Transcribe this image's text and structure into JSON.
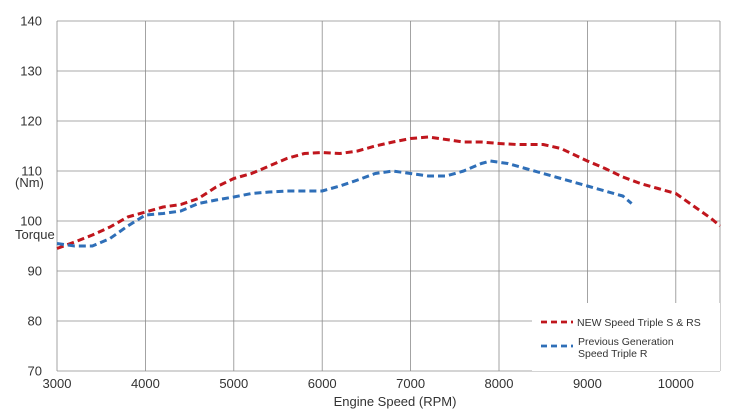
{
  "chart_data": {
    "type": "line",
    "xlabel": "Engine Speed (RPM)",
    "ylabel_unit": "(Nm)",
    "ylabel": "Torque",
    "xlim": [
      3000,
      10500
    ],
    "ylim": [
      70,
      140
    ],
    "xticks": [
      3000,
      4000,
      5000,
      6000,
      7000,
      8000,
      9000,
      10000
    ],
    "yticks": [
      70,
      80,
      90,
      100,
      110,
      120,
      130,
      140
    ],
    "grid": true,
    "legend_position": "bottom-right",
    "series": [
      {
        "name": "NEW Speed Triple S & RS",
        "color": "#c0161d",
        "dash": "dashed",
        "points": [
          [
            3000,
            94.5
          ],
          [
            3200,
            95.8
          ],
          [
            3400,
            97.2
          ],
          [
            3600,
            98.8
          ],
          [
            3800,
            100.8
          ],
          [
            4000,
            101.8
          ],
          [
            4200,
            102.8
          ],
          [
            4400,
            103.3
          ],
          [
            4600,
            104.5
          ],
          [
            4800,
            106.8
          ],
          [
            5000,
            108.5
          ],
          [
            5200,
            109.5
          ],
          [
            5400,
            111.0
          ],
          [
            5600,
            112.5
          ],
          [
            5800,
            113.5
          ],
          [
            6000,
            113.7
          ],
          [
            6200,
            113.5
          ],
          [
            6400,
            114.0
          ],
          [
            6600,
            115.0
          ],
          [
            6800,
            115.8
          ],
          [
            7000,
            116.5
          ],
          [
            7200,
            116.8
          ],
          [
            7400,
            116.3
          ],
          [
            7600,
            115.8
          ],
          [
            7800,
            115.8
          ],
          [
            8000,
            115.5
          ],
          [
            8200,
            115.3
          ],
          [
            8500,
            115.3
          ],
          [
            8700,
            114.5
          ],
          [
            9000,
            112.0
          ],
          [
            9200,
            110.5
          ],
          [
            9400,
            108.8
          ],
          [
            9600,
            107.5
          ],
          [
            9800,
            106.5
          ],
          [
            10000,
            105.5
          ],
          [
            10200,
            103.0
          ],
          [
            10400,
            100.5
          ],
          [
            10500,
            99.0
          ]
        ]
      },
      {
        "name": "Previous Generation Speed Triple R",
        "name_lines": [
          "Previous Generation",
          "Speed Triple R"
        ],
        "color": "#2f6fb8",
        "dash": "dashed",
        "points": [
          [
            3000,
            95.5
          ],
          [
            3200,
            95.0
          ],
          [
            3400,
            95.0
          ],
          [
            3600,
            96.5
          ],
          [
            3800,
            99.0
          ],
          [
            4000,
            101.2
          ],
          [
            4200,
            101.5
          ],
          [
            4400,
            102.0
          ],
          [
            4600,
            103.5
          ],
          [
            4800,
            104.2
          ],
          [
            5000,
            104.8
          ],
          [
            5200,
            105.5
          ],
          [
            5400,
            105.8
          ],
          [
            5600,
            106.0
          ],
          [
            5800,
            106.0
          ],
          [
            6000,
            106.0
          ],
          [
            6200,
            107.0
          ],
          [
            6400,
            108.2
          ],
          [
            6600,
            109.5
          ],
          [
            6800,
            110.0
          ],
          [
            7000,
            109.5
          ],
          [
            7200,
            109.0
          ],
          [
            7400,
            109.0
          ],
          [
            7600,
            110.0
          ],
          [
            7800,
            111.5
          ],
          [
            7900,
            112.0
          ],
          [
            8100,
            111.5
          ],
          [
            8300,
            110.5
          ],
          [
            8500,
            109.5
          ],
          [
            8700,
            108.5
          ],
          [
            9000,
            107.0
          ],
          [
            9200,
            106.0
          ],
          [
            9400,
            105.0
          ],
          [
            9500,
            103.5
          ]
        ]
      }
    ]
  }
}
